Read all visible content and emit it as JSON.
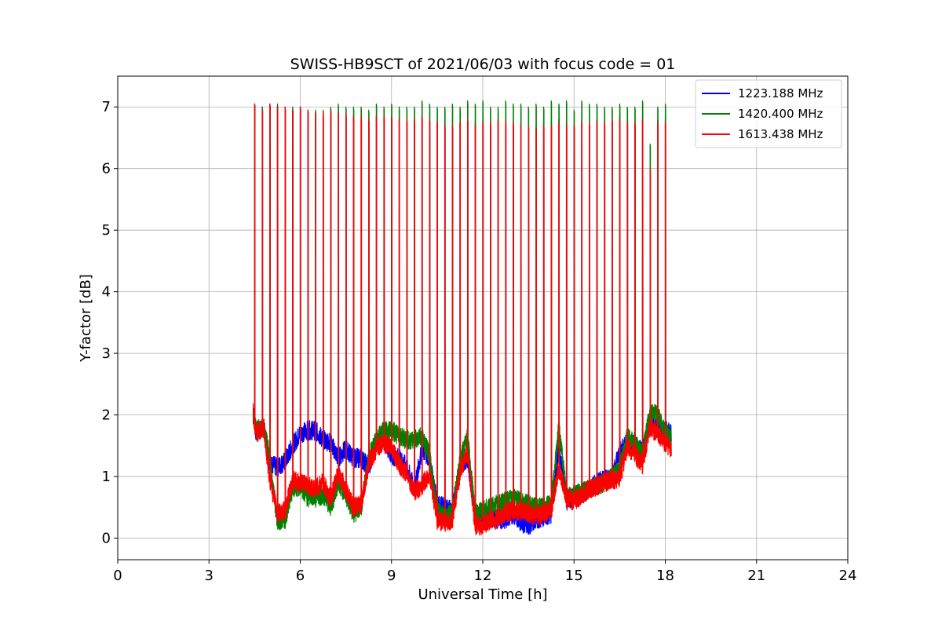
{
  "chart_data": {
    "type": "line",
    "title": "SWISS-HB9SCT of 2021/06/03 with focus code = 01",
    "xlabel": "Universal Time [h]",
    "ylabel": "Y-factor [dB]",
    "xlim": [
      0,
      24
    ],
    "ylim": [
      -0.35,
      7.5
    ],
    "xticks": [
      0,
      3,
      6,
      9,
      12,
      15,
      18,
      21,
      24
    ],
    "xtick_labels": [
      "0",
      "3",
      "6",
      "9",
      "12",
      "15",
      "18",
      "21",
      "24"
    ],
    "yticks": [
      0,
      1,
      2,
      3,
      4,
      5,
      6,
      7
    ],
    "ytick_labels": [
      "0",
      "1",
      "2",
      "3",
      "4",
      "5",
      "6",
      "7"
    ],
    "grid": true,
    "legend_position": "top-right",
    "calibration_spike_times": [
      4.5,
      4.75,
      5.0,
      5.25,
      5.5,
      5.75,
      6.0,
      6.25,
      6.5,
      6.75,
      7.0,
      7.25,
      7.5,
      7.75,
      8.0,
      8.25,
      8.5,
      8.75,
      9.0,
      9.25,
      9.5,
      9.75,
      10.0,
      10.25,
      10.5,
      10.75,
      11.0,
      11.25,
      11.5,
      11.75,
      12.0,
      12.25,
      12.5,
      12.75,
      13.0,
      13.25,
      13.5,
      13.75,
      14.0,
      14.25,
      14.5,
      14.75,
      15.0,
      15.25,
      15.5,
      15.75,
      16.0,
      16.25,
      16.5,
      16.75,
      17.0,
      17.25,
      17.5,
      17.75,
      18.0
    ],
    "series": [
      {
        "name": "1223.188 MHz",
        "color": "#0000ff",
        "spike_peaks": [
          7.05,
          7.0,
          7.05,
          7.0,
          7.0,
          6.95,
          7.0,
          6.95,
          6.9,
          6.85,
          6.9,
          6.9,
          6.9,
          6.85,
          6.8,
          6.8,
          6.85,
          6.85,
          6.85,
          6.8,
          6.8,
          6.8,
          6.85,
          6.8,
          6.75,
          6.75,
          6.7,
          6.75,
          6.8,
          6.75,
          6.8,
          6.75,
          6.8,
          6.8,
          6.75,
          6.75,
          6.7,
          6.7,
          6.75,
          6.75,
          6.8,
          6.75,
          6.7,
          6.75,
          6.75,
          6.8,
          6.75,
          6.8,
          6.85,
          6.8,
          6.75,
          6.8,
          6.0,
          6.8,
          6.8
        ],
        "baseline": [
          [
            4.45,
            2.1
          ],
          [
            4.55,
            1.7
          ],
          [
            4.8,
            1.8
          ],
          [
            5.0,
            1.2
          ],
          [
            5.25,
            1.15
          ],
          [
            5.5,
            1.25
          ],
          [
            5.75,
            1.5
          ],
          [
            6.0,
            1.7
          ],
          [
            6.25,
            1.75
          ],
          [
            6.5,
            1.75
          ],
          [
            6.75,
            1.6
          ],
          [
            7.0,
            1.55
          ],
          [
            7.25,
            1.3
          ],
          [
            7.5,
            1.45
          ],
          [
            7.75,
            1.3
          ],
          [
            8.0,
            1.3
          ],
          [
            8.25,
            1.15
          ],
          [
            8.5,
            1.55
          ],
          [
            8.75,
            1.6
          ],
          [
            9.0,
            1.35
          ],
          [
            9.25,
            1.3
          ],
          [
            9.5,
            1.15
          ],
          [
            9.75,
            0.8
          ],
          [
            10.0,
            1.45
          ],
          [
            10.25,
            1.3
          ],
          [
            10.5,
            0.55
          ],
          [
            10.75,
            0.5
          ],
          [
            11.0,
            0.45
          ],
          [
            11.25,
            1.2
          ],
          [
            11.5,
            1.3
          ],
          [
            11.75,
            0.35
          ],
          [
            12.0,
            0.35
          ],
          [
            12.25,
            0.35
          ],
          [
            12.5,
            0.3
          ],
          [
            12.75,
            0.3
          ],
          [
            13.0,
            0.4
          ],
          [
            13.25,
            0.25
          ],
          [
            13.5,
            0.2
          ],
          [
            13.75,
            0.3
          ],
          [
            14.0,
            0.35
          ],
          [
            14.25,
            0.4
          ],
          [
            14.5,
            1.5
          ],
          [
            14.75,
            0.6
          ],
          [
            15.0,
            0.65
          ],
          [
            15.25,
            0.7
          ],
          [
            15.5,
            0.8
          ],
          [
            15.75,
            0.9
          ],
          [
            16.0,
            0.95
          ],
          [
            16.25,
            1.0
          ],
          [
            16.5,
            1.4
          ],
          [
            16.75,
            1.55
          ],
          [
            17.0,
            1.5
          ],
          [
            17.25,
            1.4
          ],
          [
            17.5,
            1.9
          ],
          [
            17.75,
            1.8
          ],
          [
            18.0,
            1.75
          ],
          [
            18.2,
            1.7
          ]
        ]
      },
      {
        "name": "1420.400 MHz",
        "color": "#008000",
        "spike_peaks": [
          7.05,
          7.0,
          7.05,
          7.05,
          7.0,
          7.0,
          7.0,
          6.95,
          6.95,
          6.95,
          7.0,
          7.05,
          7.0,
          7.0,
          7.0,
          6.95,
          7.05,
          7.0,
          7.05,
          7.0,
          7.0,
          7.0,
          7.1,
          7.05,
          7.0,
          7.0,
          7.05,
          7.0,
          7.1,
          7.05,
          7.1,
          7.0,
          7.0,
          7.1,
          7.05,
          7.05,
          7.0,
          7.05,
          7.0,
          7.1,
          7.05,
          7.1,
          6.95,
          7.1,
          7.05,
          7.05,
          7.0,
          7.0,
          7.05,
          7.0,
          7.0,
          7.1,
          6.4,
          7.0,
          7.05
        ],
        "baseline": [
          [
            4.45,
            2.0
          ],
          [
            4.55,
            1.75
          ],
          [
            4.8,
            1.8
          ],
          [
            5.0,
            1.3
          ],
          [
            5.25,
            0.25
          ],
          [
            5.5,
            0.3
          ],
          [
            5.75,
            0.8
          ],
          [
            6.0,
            0.85
          ],
          [
            6.25,
            0.65
          ],
          [
            6.5,
            0.65
          ],
          [
            6.75,
            0.7
          ],
          [
            7.0,
            0.5
          ],
          [
            7.25,
            0.9
          ],
          [
            7.5,
            0.7
          ],
          [
            7.75,
            0.4
          ],
          [
            8.0,
            0.5
          ],
          [
            8.25,
            1.3
          ],
          [
            8.5,
            1.6
          ],
          [
            8.75,
            1.75
          ],
          [
            9.0,
            1.75
          ],
          [
            9.25,
            1.65
          ],
          [
            9.5,
            1.6
          ],
          [
            9.75,
            1.6
          ],
          [
            10.0,
            1.65
          ],
          [
            10.25,
            1.35
          ],
          [
            10.5,
            0.45
          ],
          [
            10.75,
            0.35
          ],
          [
            11.0,
            0.4
          ],
          [
            11.25,
            1.25
          ],
          [
            11.5,
            1.65
          ],
          [
            11.75,
            0.4
          ],
          [
            12.0,
            0.45
          ],
          [
            12.25,
            0.5
          ],
          [
            12.5,
            0.55
          ],
          [
            12.75,
            0.6
          ],
          [
            13.0,
            0.65
          ],
          [
            13.25,
            0.6
          ],
          [
            13.5,
            0.55
          ],
          [
            13.75,
            0.5
          ],
          [
            14.0,
            0.5
          ],
          [
            14.25,
            0.55
          ],
          [
            14.5,
            1.8
          ],
          [
            14.75,
            0.7
          ],
          [
            15.0,
            0.7
          ],
          [
            15.25,
            0.75
          ],
          [
            15.5,
            0.8
          ],
          [
            15.75,
            0.85
          ],
          [
            16.0,
            0.9
          ],
          [
            16.25,
            1.0
          ],
          [
            16.5,
            1.1
          ],
          [
            16.75,
            1.65
          ],
          [
            17.0,
            1.55
          ],
          [
            17.25,
            1.35
          ],
          [
            17.5,
            2.05
          ],
          [
            17.75,
            2.0
          ],
          [
            18.0,
            1.7
          ],
          [
            18.2,
            1.65
          ]
        ]
      },
      {
        "name": "1613.438 MHz",
        "color": "#ff0000",
        "spike_peaks": [
          7.05,
          6.95,
          7.05,
          7.0,
          7.0,
          6.95,
          7.0,
          6.95,
          6.9,
          6.9,
          6.95,
          6.9,
          6.9,
          6.85,
          6.85,
          6.8,
          6.85,
          6.85,
          6.85,
          6.8,
          6.8,
          6.8,
          6.85,
          6.8,
          6.75,
          6.7,
          6.7,
          6.75,
          6.8,
          6.7,
          6.75,
          6.75,
          6.8,
          6.75,
          6.75,
          6.7,
          6.7,
          6.65,
          6.7,
          6.7,
          6.75,
          6.7,
          6.7,
          6.75,
          6.75,
          6.75,
          6.75,
          6.8,
          6.8,
          6.75,
          6.75,
          6.8,
          6.0,
          6.75,
          6.75
        ],
        "baseline": [
          [
            4.45,
            2.05
          ],
          [
            4.55,
            1.7
          ],
          [
            4.8,
            1.8
          ],
          [
            5.0,
            0.95
          ],
          [
            5.25,
            0.4
          ],
          [
            5.5,
            0.45
          ],
          [
            5.75,
            0.95
          ],
          [
            6.0,
            0.9
          ],
          [
            6.25,
            0.85
          ],
          [
            6.5,
            0.8
          ],
          [
            6.75,
            0.9
          ],
          [
            7.0,
            0.65
          ],
          [
            7.25,
            1.05
          ],
          [
            7.5,
            0.8
          ],
          [
            7.75,
            0.5
          ],
          [
            8.0,
            0.55
          ],
          [
            8.25,
            1.2
          ],
          [
            8.5,
            1.45
          ],
          [
            8.75,
            1.55
          ],
          [
            9.0,
            1.45
          ],
          [
            9.25,
            1.2
          ],
          [
            9.5,
            1.05
          ],
          [
            9.75,
            0.75
          ],
          [
            10.0,
            0.85
          ],
          [
            10.25,
            1.05
          ],
          [
            10.5,
            0.3
          ],
          [
            10.75,
            0.25
          ],
          [
            11.0,
            0.3
          ],
          [
            11.25,
            1.05
          ],
          [
            11.5,
            1.4
          ],
          [
            11.75,
            0.2
          ],
          [
            12.0,
            0.2
          ],
          [
            12.25,
            0.3
          ],
          [
            12.5,
            0.3
          ],
          [
            12.75,
            0.4
          ],
          [
            13.0,
            0.45
          ],
          [
            13.25,
            0.45
          ],
          [
            13.5,
            0.4
          ],
          [
            13.75,
            0.35
          ],
          [
            14.0,
            0.4
          ],
          [
            14.25,
            0.45
          ],
          [
            14.5,
            1.15
          ],
          [
            14.75,
            0.65
          ],
          [
            15.0,
            0.6
          ],
          [
            15.25,
            0.7
          ],
          [
            15.5,
            0.8
          ],
          [
            15.75,
            0.85
          ],
          [
            16.0,
            0.9
          ],
          [
            16.25,
            0.95
          ],
          [
            16.5,
            0.95
          ],
          [
            16.75,
            1.5
          ],
          [
            17.0,
            1.35
          ],
          [
            17.25,
            1.2
          ],
          [
            17.5,
            1.8
          ],
          [
            17.75,
            1.7
          ],
          [
            18.0,
            1.55
          ],
          [
            18.2,
            1.45
          ]
        ]
      }
    ]
  }
}
